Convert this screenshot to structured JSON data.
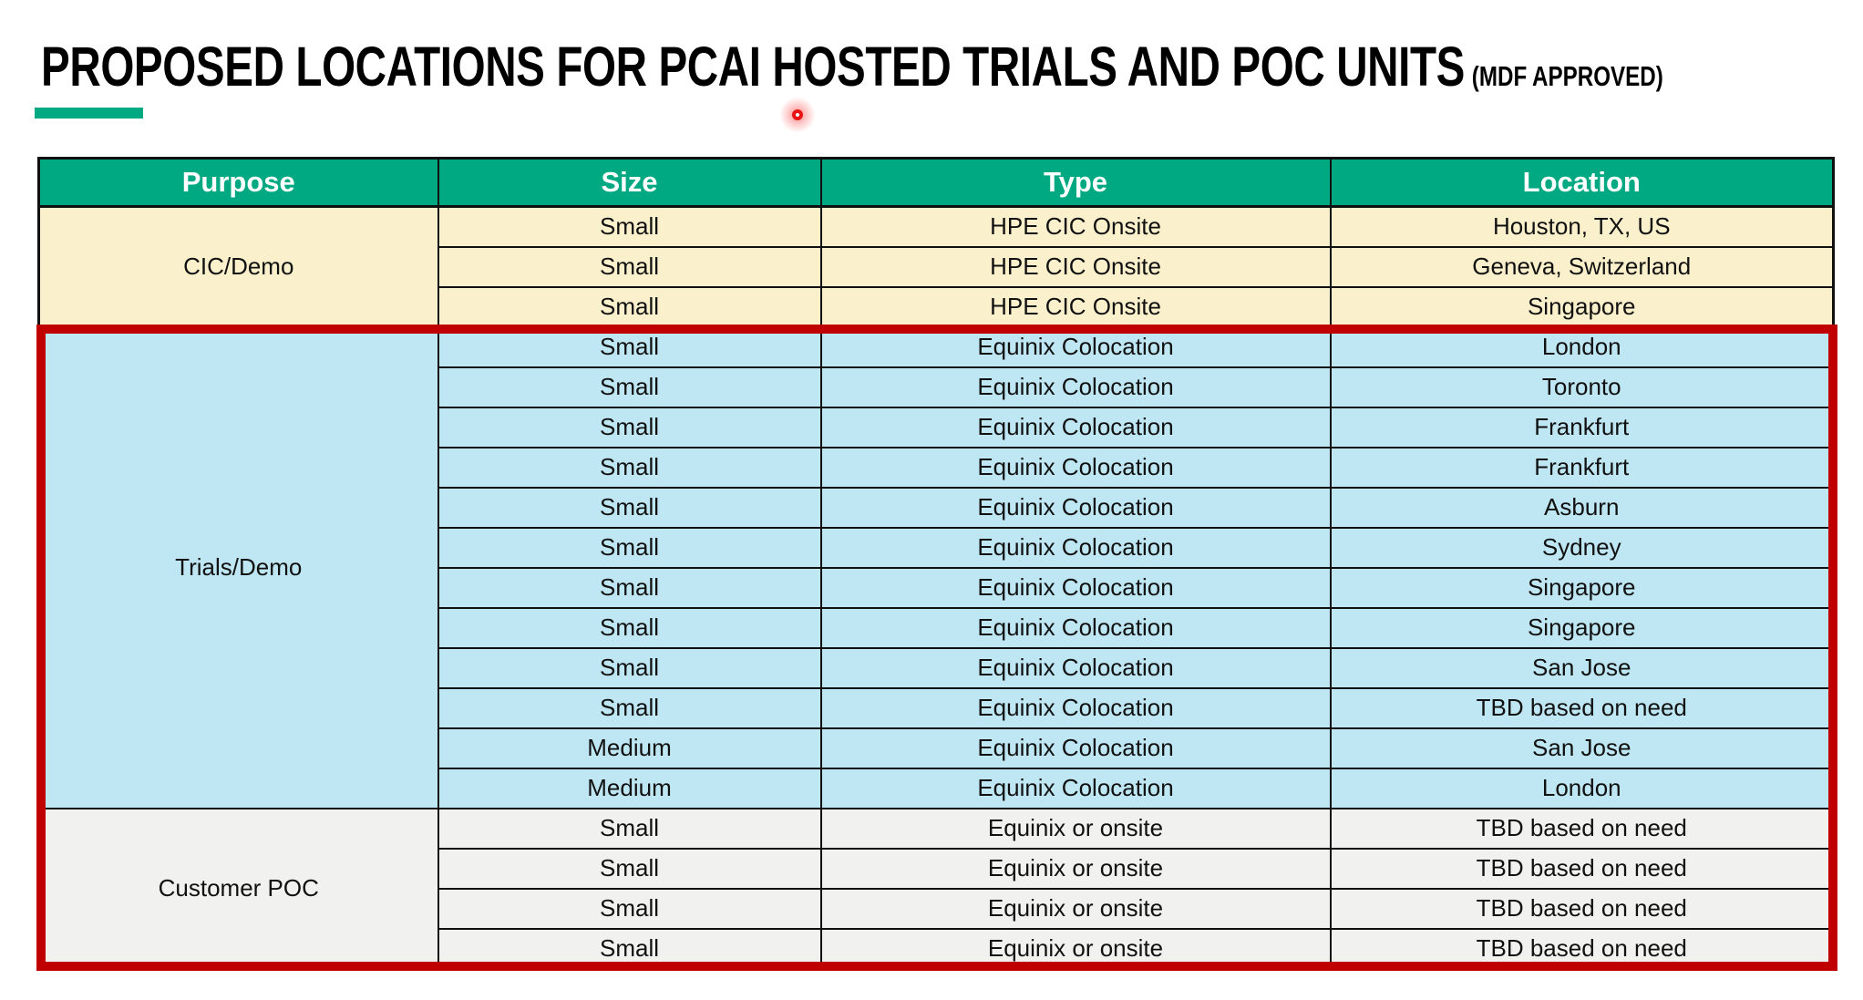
{
  "page": {
    "title": "PROPOSED LOCATIONS FOR PCAI HOSTED TRIALS AND POC UNITS",
    "title_suffix": "(MDF APPROVED)"
  },
  "colors": {
    "header_bg": "#01A982",
    "accent_bar": "#01A982",
    "cream": "#FAF0CC",
    "blue": "#BEE7F3",
    "gray": "#F1F1EF",
    "highlight_border": "#C00000",
    "laser_dot": "#E81313"
  },
  "table": {
    "columns": [
      "Purpose",
      "Size",
      "Type",
      "Location"
    ],
    "sections": [
      {
        "purpose": "CIC/Demo",
        "style": "cream",
        "rows": [
          {
            "size": "Small",
            "type": "HPE CIC Onsite",
            "location": "Houston, TX, US"
          },
          {
            "size": "Small",
            "type": "HPE CIC Onsite",
            "location": "Geneva, Switzerland"
          },
          {
            "size": "Small",
            "type": "HPE CIC Onsite",
            "location": "Singapore"
          }
        ]
      },
      {
        "purpose": "Trials/Demo",
        "style": "blue",
        "rows": [
          {
            "size": "Small",
            "type": "Equinix Colocation",
            "location": "London"
          },
          {
            "size": "Small",
            "type": "Equinix Colocation",
            "location": "Toronto"
          },
          {
            "size": "Small",
            "type": "Equinix Colocation",
            "location": "Frankfurt"
          },
          {
            "size": "Small",
            "type": "Equinix Colocation",
            "location": "Frankfurt"
          },
          {
            "size": "Small",
            "type": "Equinix Colocation",
            "location": "Asburn"
          },
          {
            "size": "Small",
            "type": "Equinix Colocation",
            "location": "Sydney"
          },
          {
            "size": "Small",
            "type": "Equinix Colocation",
            "location": "Singapore"
          },
          {
            "size": "Small",
            "type": "Equinix Colocation",
            "location": "Singapore"
          },
          {
            "size": "Small",
            "type": "Equinix Colocation",
            "location": "San Jose"
          },
          {
            "size": "Small",
            "type": "Equinix Colocation",
            "location": "TBD based on need"
          },
          {
            "size": "Medium",
            "type": "Equinix Colocation",
            "location": "San Jose"
          },
          {
            "size": "Medium",
            "type": "Equinix Colocation",
            "location": "London"
          }
        ]
      },
      {
        "purpose": "Customer POC",
        "style": "gray",
        "rows": [
          {
            "size": "Small",
            "type": "Equinix or onsite",
            "location": "TBD based on need"
          },
          {
            "size": "Small",
            "type": "Equinix or onsite",
            "location": "TBD based on need"
          },
          {
            "size": "Small",
            "type": "Equinix or onsite",
            "location": "TBD based on need"
          },
          {
            "size": "Small",
            "type": "Equinix or onsite",
            "location": "TBD based on need"
          }
        ]
      }
    ]
  }
}
